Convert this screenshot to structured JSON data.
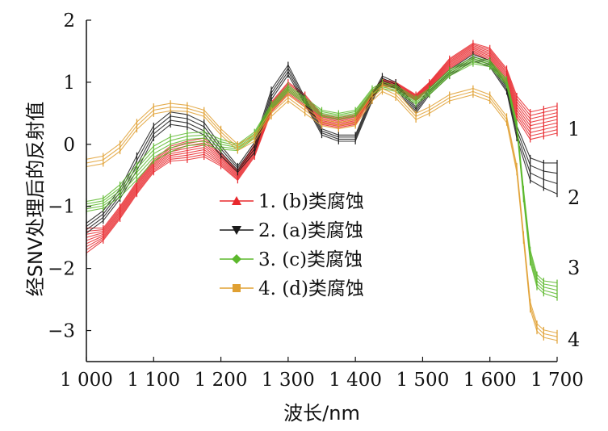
{
  "chart_data": {
    "type": "line",
    "xlabel": "波长/nm",
    "ylabel": "经SNV处理后的反射值",
    "xlim": [
      1000,
      1700
    ],
    "ylim": [
      -3.5,
      2
    ],
    "x_ticks": [
      1000,
      1100,
      1200,
      1300,
      1400,
      1500,
      1600,
      1700
    ],
    "x_tick_labels": [
      "1 000",
      "1 100",
      "1 200",
      "1 300",
      "1 400",
      "1 500",
      "1 600",
      "1 700"
    ],
    "y_ticks": [
      2,
      1,
      0,
      -1,
      -2,
      -3
    ],
    "y_tick_labels": [
      "2",
      "1",
      "0",
      "−1",
      "−2",
      "−3"
    ],
    "legend_position": "center-left",
    "group_labels": [
      "1",
      "2",
      "3",
      "4"
    ],
    "colors": {
      "1": "#e8282d",
      "2": "#1a1a1a",
      "3": "#5cb82c",
      "4": "#e0a032"
    },
    "series": [
      {
        "name": "1. (b)类腐蚀",
        "color": "#e8282d",
        "marker": "triangle-up",
        "x": [
          1000,
          1025,
          1050,
          1075,
          1100,
          1125,
          1150,
          1175,
          1200,
          1225,
          1250,
          1275,
          1300,
          1325,
          1350,
          1375,
          1400,
          1425,
          1440,
          1460,
          1490,
          1510,
          1540,
          1575,
          1600,
          1625,
          1640,
          1660,
          1680,
          1700
        ],
        "y": [
          -1.55,
          -1.45,
          -1.1,
          -0.7,
          -0.35,
          -0.15,
          -0.1,
          -0.05,
          -0.25,
          -0.5,
          -0.1,
          0.6,
          0.9,
          0.7,
          0.4,
          0.35,
          0.4,
          0.8,
          1.0,
          0.95,
          0.75,
          0.95,
          1.3,
          1.55,
          1.45,
          1.1,
          0.6,
          0.3,
          0.35,
          0.4
        ],
        "band": [
          0.2,
          0.1,
          0.1,
          0.1,
          0.1,
          0.12,
          0.15,
          0.15,
          0.1,
          0.08,
          0.1,
          0.08,
          0.1,
          0.1,
          0.08,
          0.08,
          0.08,
          0.05,
          0.05,
          0.05,
          0.05,
          0.05,
          0.08,
          0.08,
          0.1,
          0.12,
          0.18,
          0.22,
          0.22,
          0.22
        ],
        "lines": 9
      },
      {
        "name": "2. (a)类腐蚀",
        "color": "#1a1a1a",
        "marker": "triangle-down",
        "x": [
          1000,
          1025,
          1050,
          1075,
          1100,
          1125,
          1150,
          1175,
          1200,
          1225,
          1250,
          1275,
          1300,
          1325,
          1350,
          1375,
          1400,
          1425,
          1440,
          1460,
          1490,
          1510,
          1540,
          1575,
          1600,
          1625,
          1640,
          1660,
          1680,
          1700
        ],
        "y": [
          -1.35,
          -1.15,
          -0.8,
          -0.3,
          0.2,
          0.42,
          0.38,
          0.25,
          -0.1,
          -0.4,
          -0.05,
          0.8,
          1.2,
          0.7,
          0.2,
          0.1,
          0.1,
          0.75,
          1.05,
          0.95,
          0.55,
          0.85,
          1.15,
          1.4,
          1.3,
          0.9,
          0.2,
          -0.4,
          -0.5,
          -0.55
        ],
        "band": [
          0.08,
          0.08,
          0.08,
          0.12,
          0.1,
          0.1,
          0.1,
          0.1,
          0.08,
          0.05,
          0.08,
          0.08,
          0.08,
          0.05,
          0.05,
          0.05,
          0.05,
          0.05,
          0.05,
          0.05,
          0.05,
          0.05,
          0.05,
          0.05,
          0.05,
          0.05,
          0.1,
          0.18,
          0.2,
          0.25
        ],
        "lines": 4
      },
      {
        "name": "3. (c)类腐蚀",
        "color": "#5cb82c",
        "marker": "diamond",
        "x": [
          1000,
          1025,
          1050,
          1075,
          1100,
          1125,
          1150,
          1175,
          1200,
          1225,
          1250,
          1275,
          1300,
          1325,
          1350,
          1375,
          1400,
          1425,
          1440,
          1460,
          1490,
          1510,
          1540,
          1575,
          1600,
          1625,
          1640,
          1650,
          1660,
          1670,
          1680,
          1700
        ],
        "y": [
          -1.0,
          -0.95,
          -0.75,
          -0.45,
          -0.15,
          0.0,
          0.08,
          0.1,
          0.0,
          -0.05,
          0.15,
          0.6,
          0.9,
          0.7,
          0.5,
          0.45,
          0.5,
          0.85,
          0.95,
          0.9,
          0.7,
          0.85,
          1.15,
          1.35,
          1.3,
          1.0,
          0.3,
          -0.8,
          -1.8,
          -2.2,
          -2.3,
          -2.35
        ],
        "band": [
          0.08,
          0.08,
          0.1,
          0.12,
          0.12,
          0.12,
          0.1,
          0.1,
          0.08,
          0.05,
          0.05,
          0.05,
          0.05,
          0.05,
          0.05,
          0.05,
          0.05,
          0.05,
          0.05,
          0.05,
          0.05,
          0.05,
          0.05,
          0.05,
          0.05,
          0.05,
          0.05,
          0.08,
          0.1,
          0.1,
          0.1,
          0.12
        ],
        "lines": 5
      },
      {
        "name": "4. (d)类腐蚀",
        "color": "#e0a032",
        "marker": "square",
        "x": [
          1000,
          1025,
          1050,
          1075,
          1100,
          1125,
          1150,
          1175,
          1200,
          1225,
          1250,
          1275,
          1300,
          1325,
          1350,
          1375,
          1400,
          1425,
          1440,
          1460,
          1490,
          1510,
          1540,
          1575,
          1600,
          1625,
          1640,
          1650,
          1660,
          1670,
          1680,
          1700
        ],
        "y": [
          -0.3,
          -0.25,
          -0.05,
          0.3,
          0.55,
          0.6,
          0.58,
          0.5,
          0.2,
          -0.05,
          0.1,
          0.5,
          0.75,
          0.55,
          0.35,
          0.3,
          0.35,
          0.75,
          0.9,
          0.8,
          0.45,
          0.55,
          0.75,
          0.85,
          0.75,
          0.4,
          -0.4,
          -1.5,
          -2.6,
          -2.95,
          -3.05,
          -3.1
        ],
        "band": [
          0.06,
          0.06,
          0.06,
          0.06,
          0.06,
          0.06,
          0.05,
          0.05,
          0.05,
          0.05,
          0.05,
          0.05,
          0.05,
          0.05,
          0.05,
          0.05,
          0.05,
          0.05,
          0.05,
          0.05,
          0.05,
          0.05,
          0.05,
          0.05,
          0.05,
          0.05,
          0.05,
          0.05,
          0.06,
          0.06,
          0.06,
          0.06
        ],
        "lines": 3
      }
    ]
  }
}
